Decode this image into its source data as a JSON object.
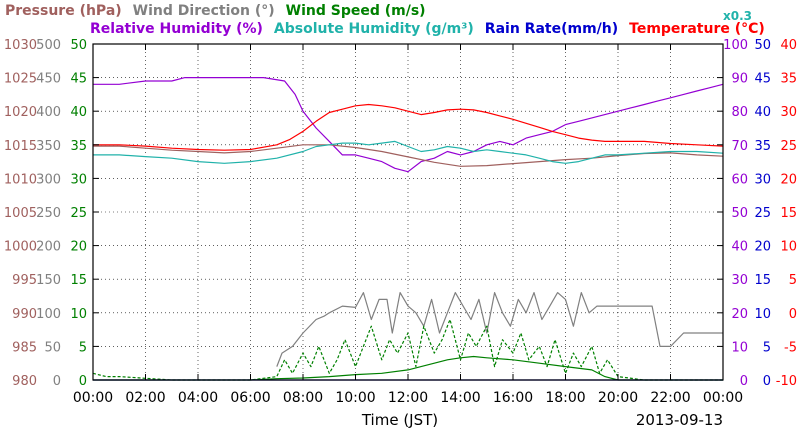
{
  "chart_data": {
    "type": "line",
    "title_rows": [
      [
        {
          "text": "Pressure (hPa)",
          "color": "#a0605e"
        },
        {
          "text": "Wind Direction (°)",
          "color": "#808080"
        },
        {
          "text": "Wind Speed (m/s)",
          "color": "#008000"
        }
      ],
      [
        {
          "text": "Relative Humidity (%)",
          "color": "#9400d3"
        },
        {
          "text": "Absolute Humidity (g/m³)",
          "color": "#20b2aa"
        },
        {
          "text": "Rain Rate(mm/h)",
          "color": "#0000cd"
        },
        {
          "text": "Temperature (°C)",
          "color": "#ff0000"
        }
      ]
    ],
    "scale_note": "x0.3",
    "xlabel": "Time (JST)",
    "date_label": "2013-09-13",
    "x_ticks": [
      "00:00",
      "02:00",
      "04:00",
      "06:00",
      "08:00",
      "10:00",
      "12:00",
      "14:00",
      "16:00",
      "18:00",
      "20:00",
      "22:00",
      "00:00"
    ],
    "x_range_hours": [
      0,
      24
    ],
    "grid": true,
    "axes": {
      "pressure": {
        "color": "#a0605e",
        "range": [
          980,
          1030
        ],
        "ticks": [
          "1030",
          "1025",
          "1020",
          "1015",
          "1010",
          "1005",
          "1000",
          "995",
          "990",
          "985",
          "980"
        ]
      },
      "wind_direction": {
        "color": "#808080",
        "range": [
          0,
          500
        ],
        "ticks": [
          "500",
          "450",
          "400",
          "350",
          "300",
          "250",
          "200",
          "150",
          "100",
          "50",
          "0"
        ]
      },
      "wind_speed": {
        "color": "#008000",
        "range": [
          0,
          50
        ],
        "ticks": [
          "50",
          "45",
          "40",
          "35",
          "30",
          "25",
          "20",
          "15",
          "10",
          "5",
          "0"
        ]
      },
      "humidity": {
        "color": "#9400d3",
        "range": [
          0,
          100
        ],
        "ticks": [
          "100",
          "90",
          "80",
          "70",
          "60",
          "50",
          "40",
          "30",
          "20",
          "10",
          "0"
        ]
      },
      "rain_rate": {
        "color": "#0000cd",
        "range": [
          0,
          50
        ],
        "ticks": [
          "50",
          "45",
          "40",
          "35",
          "30",
          "25",
          "20",
          "15",
          "10",
          "5",
          "0"
        ]
      },
      "temperature": {
        "color": "#ff0000",
        "range": [
          -10,
          40
        ],
        "ticks": [
          "40",
          "35",
          "30",
          "25",
          "20",
          "15",
          "10",
          "5",
          "0",
          "-5",
          "-10"
        ]
      }
    },
    "series": [
      {
        "name": "Relative Humidity (%)",
        "axis": "humidity",
        "color": "#9400d3",
        "x": [
          0,
          1,
          2,
          3,
          3.5,
          5,
          6.5,
          7.3,
          7.7,
          8,
          8.5,
          9,
          9.5,
          10,
          10.5,
          11,
          11.5,
          12,
          12.5,
          13,
          13.5,
          14,
          14.5,
          15,
          15.5,
          16,
          16.5,
          17,
          17.5,
          18,
          18.5,
          19,
          19.5,
          20,
          20.5,
          21,
          21.5,
          22,
          22.5,
          23,
          23.5,
          24
        ],
        "y": [
          88,
          88,
          89,
          89,
          90,
          90,
          90,
          89,
          85,
          80,
          75,
          71,
          67,
          67,
          66,
          65,
          63,
          62,
          65,
          66,
          68,
          67,
          68,
          70,
          71,
          70,
          72,
          73,
          74,
          76,
          77,
          78,
          79,
          80,
          81,
          82,
          83,
          84,
          85,
          86,
          87,
          88
        ]
      },
      {
        "name": "Temperature (°C)",
        "axis": "temperature",
        "color": "#ff0000",
        "x": [
          0,
          1,
          2,
          3,
          4,
          5,
          6,
          7,
          7.5,
          8,
          8.5,
          9,
          9.5,
          10,
          10.5,
          11,
          11.5,
          12,
          12.5,
          13,
          13.5,
          14,
          14.5,
          15,
          15.5,
          16,
          16.5,
          17,
          17.5,
          18,
          18.5,
          19,
          19.5,
          20,
          21,
          22,
          23,
          24
        ],
        "y": [
          25,
          25,
          24.8,
          24.5,
          24.3,
          24.2,
          24.3,
          25,
          25.8,
          27,
          28.5,
          29.8,
          30.3,
          30.8,
          31,
          30.8,
          30.5,
          30,
          29.5,
          29.8,
          30.2,
          30.3,
          30.2,
          29.8,
          29.3,
          28.8,
          28.2,
          27.6,
          27,
          26.5,
          26,
          25.7,
          25.5,
          25.5,
          25.5,
          25.2,
          25,
          24.8
        ]
      },
      {
        "name": "Pressure (hPa)",
        "axis": "pressure",
        "color": "#a0605e",
        "x": [
          0,
          1,
          2,
          3,
          4,
          5,
          6,
          7,
          8,
          9,
          10,
          11,
          12,
          13,
          14,
          15,
          16,
          17,
          18,
          19,
          20,
          21,
          22,
          23,
          24
        ],
        "y": [
          1014.8,
          1014.8,
          1014.5,
          1014.2,
          1014.0,
          1013.8,
          1014.0,
          1014.5,
          1015.0,
          1015.0,
          1014.6,
          1014.0,
          1013.2,
          1012.4,
          1011.8,
          1011.9,
          1012.2,
          1012.5,
          1012.8,
          1013.0,
          1013.4,
          1013.7,
          1013.8,
          1013.5,
          1013.3
        ]
      },
      {
        "name": "Absolute Humidity (g/m³)",
        "axis": "humidity",
        "color": "#20b2aa",
        "x": [
          0,
          1,
          2,
          3,
          4,
          5,
          6,
          7,
          8,
          8.5,
          9,
          9.5,
          10,
          10.5,
          11,
          11.5,
          12,
          12.5,
          13,
          13.5,
          14,
          14.5,
          15,
          15.5,
          16,
          16.5,
          17,
          17.5,
          18,
          18.5,
          19,
          19.5,
          20,
          21,
          22,
          23,
          24
        ],
        "y": [
          67,
          67,
          66.5,
          66,
          65,
          64.5,
          65,
          66,
          68,
          69.5,
          70,
          70.5,
          70.5,
          70,
          70.5,
          71,
          69.5,
          68,
          68.5,
          69.5,
          69,
          68,
          68.5,
          68,
          67.5,
          67,
          66,
          65,
          64.5,
          65,
          66,
          67,
          67,
          67.5,
          68,
          68,
          67.5
        ]
      },
      {
        "name": "Wind Direction (°)",
        "axis": "wind_direction",
        "color": "#808080",
        "x": [
          7,
          7.2,
          7.6,
          8,
          8.5,
          8.8,
          9,
          9.5,
          10,
          10.3,
          10.6,
          10.9,
          11.2,
          11.4,
          11.7,
          12,
          12.3,
          12.6,
          12.9,
          13.2,
          13.5,
          13.8,
          14.1,
          14.4,
          14.7,
          15,
          15.3,
          15.6,
          15.9,
          16.2,
          16.5,
          16.8,
          17.1,
          17.4,
          17.7,
          18,
          18.3,
          18.6,
          18.9,
          19.2,
          19.5,
          19.8,
          20.1,
          20.4,
          20.7,
          21,
          21.3,
          21.6,
          22,
          22.5,
          23,
          23.5,
          24
        ],
        "y": [
          20,
          40,
          50,
          70,
          90,
          95,
          100,
          110,
          108,
          130,
          90,
          120,
          120,
          70,
          130,
          110,
          100,
          80,
          120,
          70,
          100,
          130,
          110,
          90,
          120,
          70,
          130,
          100,
          80,
          120,
          100,
          130,
          90,
          110,
          130,
          120,
          80,
          130,
          100,
          110,
          110,
          110,
          110,
          110,
          110,
          110,
          110,
          50,
          50,
          70,
          70,
          70,
          70
        ]
      },
      {
        "name": "Wind Speed (m/s)",
        "axis": "wind_speed",
        "color": "#008000",
        "dashed": true,
        "x": [
          0,
          0.5,
          1,
          3,
          6,
          7,
          7.3,
          7.6,
          8,
          8.3,
          8.6,
          9,
          9.3,
          9.6,
          10,
          10.3,
          10.6,
          11,
          11.3,
          11.6,
          12,
          12.3,
          12.6,
          13,
          13.3,
          13.6,
          14,
          14.3,
          14.6,
          15,
          15.3,
          15.6,
          16,
          16.3,
          16.6,
          17,
          17.3,
          17.6,
          18,
          18.3,
          18.6,
          19,
          19.3,
          19.6,
          20,
          21,
          22,
          23,
          24
        ],
        "y": [
          1,
          0.5,
          0.5,
          0,
          0,
          0.5,
          3,
          1,
          4,
          2,
          5,
          1,
          3,
          6,
          2,
          5,
          8,
          3,
          6,
          4,
          7,
          2,
          8,
          4,
          6,
          9,
          3,
          7,
          5,
          8,
          2,
          6,
          4,
          7,
          3,
          5,
          2,
          6,
          1,
          4,
          2,
          5,
          1,
          3,
          0.5,
          0,
          0,
          0,
          0
        ]
      },
      {
        "name": "Wind Speed (m/s)",
        "axis": "wind_speed",
        "color": "#008000",
        "x": [
          0,
          6,
          7,
          8,
          9,
          10,
          11,
          12,
          12.5,
          13,
          13.5,
          14,
          14.5,
          15,
          16,
          17,
          18,
          19,
          19.5,
          20,
          24
        ],
        "y": [
          0,
          0,
          0.2,
          0.3,
          0.5,
          0.8,
          1,
          1.5,
          2,
          2.5,
          3,
          3.3,
          3.5,
          3.3,
          3,
          2.5,
          2,
          1.5,
          0.5,
          0,
          0
        ]
      },
      {
        "name": "Rain Rate(mm/h)",
        "axis": "rain_rate",
        "color": "#0000cd",
        "x": [
          0,
          24
        ],
        "y": [
          0,
          0
        ]
      }
    ]
  }
}
